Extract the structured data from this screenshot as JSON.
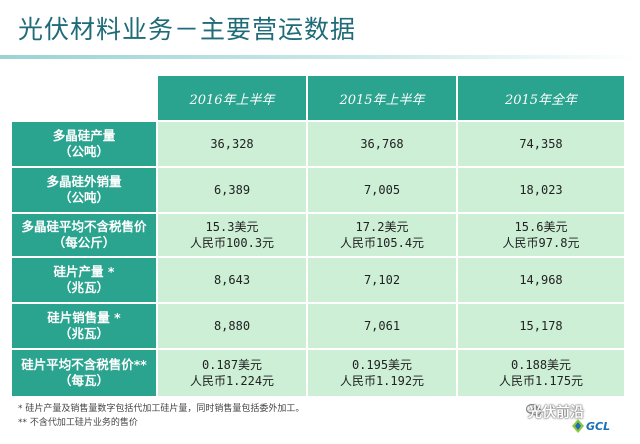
{
  "title": "光伏材料业务－主要营运数据",
  "table": {
    "headers": [
      "2016年上半年",
      "2015年上半年",
      "2015年全年"
    ],
    "rows": [
      {
        "label_line1": "多晶硅产量",
        "label_line2": "（公吨）",
        "values": [
          [
            "36,328"
          ],
          [
            "36,768"
          ],
          [
            "74,358"
          ]
        ]
      },
      {
        "label_line1": "多晶硅外销量",
        "label_line2": "（公吨）",
        "values": [
          [
            "6,389"
          ],
          [
            "7,005"
          ],
          [
            "18,023"
          ]
        ]
      },
      {
        "label_line1": "多晶硅平均不含税售价",
        "label_line2": "（每公斤）",
        "values": [
          [
            "15.3美元",
            "人民币100.3元"
          ],
          [
            "17.2美元",
            "人民币105.4元"
          ],
          [
            "15.6美元",
            "人民币97.8元"
          ]
        ]
      },
      {
        "label_line1": "硅片产量 *",
        "label_line2": "（兆瓦）",
        "values": [
          [
            "8,643"
          ],
          [
            "7,102"
          ],
          [
            "14,968"
          ]
        ]
      },
      {
        "label_line1": "硅片销售量 *",
        "label_line2": "（兆瓦）",
        "values": [
          [
            "8,880"
          ],
          [
            "7,061"
          ],
          [
            "15,178"
          ]
        ]
      },
      {
        "label_line1": "硅片平均不含税售价**",
        "label_line2": "（每瓦）",
        "values": [
          [
            "0.187美元",
            "人民币1.224元"
          ],
          [
            "0.195美元",
            "人民币1.192元"
          ],
          [
            "0.188美元",
            "人民币1.175元"
          ]
        ]
      }
    ]
  },
  "footnotes": [
    "*   硅片产量及销售量数字包括代加工硅片量，同时销售量包括委外加工。",
    "**  不含代加工硅片业务的售价"
  ],
  "watermark": "光伏前沿",
  "logo_text": "GCL",
  "colors": {
    "header_bg": "#2aa38f",
    "cell_bg": "#ccefd6",
    "title": "#1f6b78"
  }
}
